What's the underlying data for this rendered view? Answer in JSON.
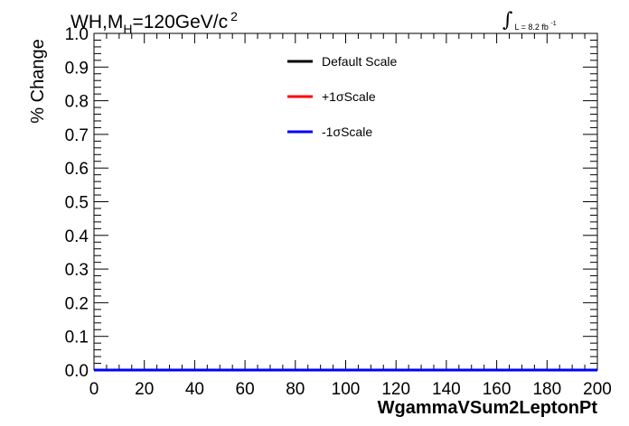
{
  "chart_data": {
    "type": "line",
    "title_text": "WH,M",
    "title_sub": "H",
    "title_rest": "=120GeV/c",
    "title_sup": "2",
    "lumi_text": "L = 8.2 fb",
    "lumi_sup": "-1",
    "xlabel": "WgammaVSum2LeptonPt",
    "ylabel": "% Change",
    "xlim": [
      0,
      200
    ],
    "ylim": [
      0,
      1
    ],
    "xticks": [
      "0",
      "20",
      "40",
      "60",
      "80",
      "100",
      "120",
      "140",
      "160",
      "180",
      "200"
    ],
    "yticks": [
      "0.0",
      "0.1",
      "0.2",
      "0.3",
      "0.4",
      "0.5",
      "0.6",
      "0.7",
      "0.8",
      "0.9",
      "1.0"
    ],
    "grid": false,
    "legend_position": "top-center",
    "series": [
      {
        "name": "Default Scale",
        "color": "#000000",
        "x": [
          0,
          200
        ],
        "y": [
          0,
          0
        ]
      },
      {
        "name": "+1σScale",
        "color": "#ff0000",
        "x": [
          0,
          200
        ],
        "y": [
          0,
          0
        ]
      },
      {
        "name": "-1σScale",
        "color": "#0000ff",
        "x": [
          0,
          200
        ],
        "y": [
          0,
          0
        ]
      }
    ]
  }
}
